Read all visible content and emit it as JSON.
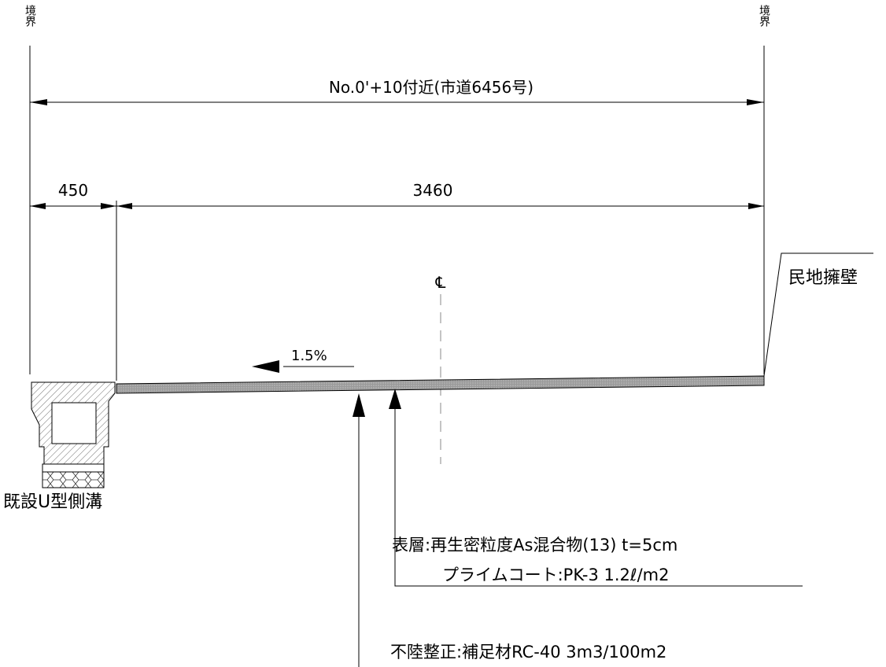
{
  "boundary": {
    "left_label": "境界",
    "right_label": "境界"
  },
  "station_label": "No.0'+10付近(市道6456号)",
  "dimensions": {
    "gutter_width": "450",
    "road_width": "3460"
  },
  "centerline_symbol": "℄",
  "slope": "1.5%",
  "retaining_wall_label": "民地擁壁",
  "existing_gutter_label": "既設U型側溝",
  "surface_layer": {
    "line1": "表層:再生密粒度As混合物(13) t=5cm",
    "line2": "プライムコート:PK-3 1.2ℓ/m2"
  },
  "leveling_layer": {
    "line1": "不陸整正:補足材RC-40 3m3/100m2"
  }
}
